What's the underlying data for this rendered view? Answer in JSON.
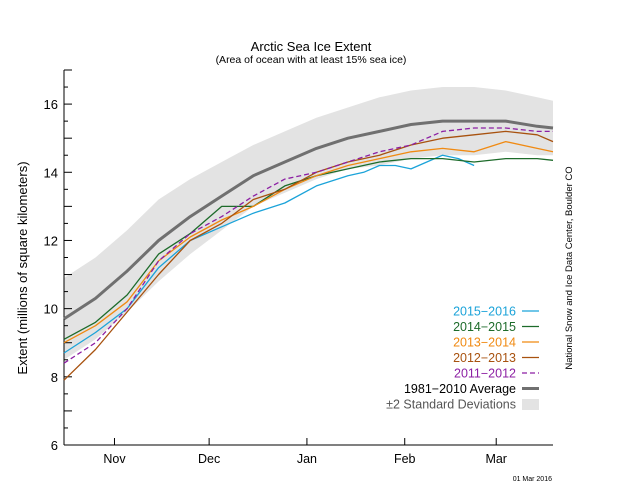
{
  "chart_data": {
    "type": "line",
    "title": "Arctic Sea Ice Extent",
    "subtitle": "(Area of ocean with at least 15% sea ice)",
    "ylabel": "Extent (millions of square kilometers)",
    "xlabel": "",
    "ylim": [
      6,
      17
    ],
    "xlim": [
      -10,
      145
    ],
    "yticks": [
      6,
      8,
      10,
      12,
      14,
      16
    ],
    "month_ticks": [
      {
        "label": "Nov",
        "x": 6
      },
      {
        "label": "Dec",
        "x": 36
      },
      {
        "label": "Jan",
        "x": 67
      },
      {
        "label": "Feb",
        "x": 98
      },
      {
        "label": "Mar",
        "x": 127
      }
    ],
    "legend_position": "bottom-right",
    "series": [
      {
        "name": "2015−2016",
        "color": "#1ba3d9",
        "dash": "solid",
        "x": [
          -10,
          0,
          10,
          20,
          30,
          40,
          50,
          60,
          70,
          80,
          85,
          90,
          95,
          100,
          105,
          110,
          115,
          120
        ],
        "y": [
          8.7,
          9.3,
          10.0,
          11.2,
          12.0,
          12.4,
          12.8,
          13.1,
          13.6,
          13.9,
          14.0,
          14.2,
          14.2,
          14.1,
          14.3,
          14.5,
          14.4,
          14.2
        ]
      },
      {
        "name": "2014−2015",
        "color": "#1d6b2a",
        "dash": "solid",
        "x": [
          -10,
          0,
          10,
          20,
          30,
          40,
          50,
          60,
          70,
          80,
          90,
          100,
          110,
          120,
          130,
          140,
          145
        ],
        "y": [
          9.1,
          9.6,
          10.4,
          11.6,
          12.2,
          13.0,
          13.0,
          13.6,
          13.9,
          14.1,
          14.3,
          14.4,
          14.4,
          14.3,
          14.4,
          14.4,
          14.35
        ]
      },
      {
        "name": "2013−2014",
        "color": "#f08a12",
        "dash": "solid",
        "x": [
          -10,
          0,
          10,
          20,
          30,
          40,
          50,
          60,
          70,
          80,
          90,
          100,
          110,
          120,
          130,
          140,
          145
        ],
        "y": [
          9.0,
          9.5,
          10.2,
          11.4,
          12.1,
          12.6,
          13.0,
          13.5,
          13.9,
          14.2,
          14.4,
          14.6,
          14.7,
          14.6,
          14.9,
          14.7,
          14.6
        ]
      },
      {
        "name": "2012−2013",
        "color": "#a8520f",
        "dash": "solid",
        "x": [
          -10,
          0,
          10,
          20,
          30,
          40,
          50,
          60,
          70,
          80,
          90,
          100,
          110,
          120,
          130,
          140,
          145
        ],
        "y": [
          7.9,
          8.8,
          9.9,
          11.0,
          12.0,
          12.5,
          13.2,
          13.5,
          14.0,
          14.3,
          14.5,
          14.8,
          15.0,
          15.1,
          15.2,
          15.1,
          14.9
        ]
      },
      {
        "name": "2011−2012",
        "color": "#8c1fa3",
        "dash": "dashed",
        "x": [
          -10,
          0,
          10,
          20,
          30,
          40,
          50,
          60,
          70,
          80,
          90,
          100,
          110,
          120,
          130,
          140,
          145
        ],
        "y": [
          8.4,
          9.0,
          10.0,
          11.4,
          12.2,
          12.7,
          13.3,
          13.8,
          14.0,
          14.3,
          14.6,
          14.8,
          15.2,
          15.3,
          15.3,
          15.2,
          15.2
        ]
      },
      {
        "name": "1981−2010 Average",
        "color": "#707070",
        "dash": "solid",
        "width": 3,
        "x": [
          -10,
          0,
          10,
          20,
          30,
          40,
          50,
          60,
          70,
          80,
          90,
          100,
          110,
          120,
          130,
          140,
          145
        ],
        "y": [
          9.7,
          10.3,
          11.1,
          12.0,
          12.7,
          13.3,
          13.9,
          14.3,
          14.7,
          15.0,
          15.2,
          15.4,
          15.5,
          15.5,
          15.5,
          15.35,
          15.3
        ]
      }
    ],
    "std_band": {
      "name": "±2 Standard Deviations",
      "color": "#e3e3e3",
      "x": [
        -10,
        0,
        10,
        20,
        30,
        40,
        50,
        60,
        70,
        80,
        90,
        100,
        110,
        120,
        130,
        140,
        145
      ],
      "upper": [
        10.9,
        11.5,
        12.3,
        13.2,
        13.8,
        14.3,
        14.8,
        15.2,
        15.6,
        15.9,
        16.2,
        16.4,
        16.5,
        16.5,
        16.4,
        16.2,
        16.1
      ],
      "lower": [
        8.5,
        9.1,
        9.9,
        10.8,
        11.6,
        12.3,
        13.0,
        13.4,
        13.8,
        14.1,
        14.2,
        14.4,
        14.5,
        14.5,
        14.6,
        14.5,
        14.5
      ]
    }
  },
  "credit": "National Snow and Ice Data Center, Boulder CO",
  "date_stamp": "01 Mar 2016"
}
